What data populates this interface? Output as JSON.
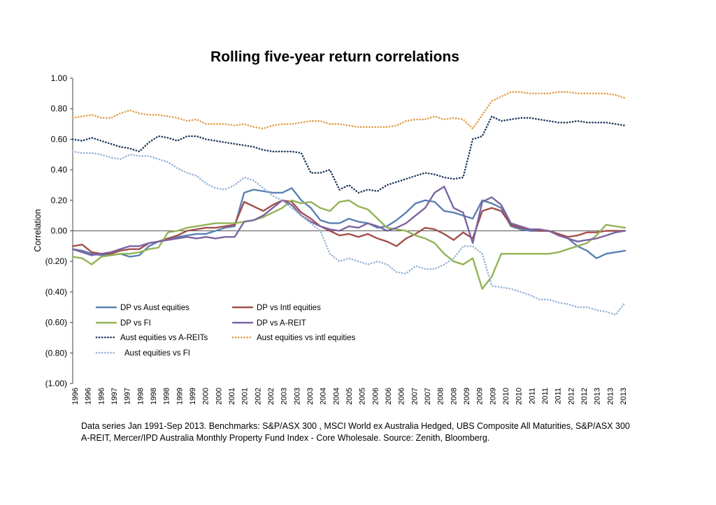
{
  "chart_data": {
    "type": "line",
    "title": "Rolling five-year return correlations",
    "ylabel": "Correlation",
    "xlabel": "",
    "ylim": [
      -1.0,
      1.0
    ],
    "y_ticks": [
      "1.00",
      "0.80",
      "0.60",
      "0.40",
      "0.20",
      "0.00",
      "(0.20)",
      "(0.40)",
      "(0.60)",
      "(0.80)",
      "(1.00)"
    ],
    "x_tick_labels": [
      "1996",
      "1996",
      "1996",
      "1997",
      "1997",
      "1998",
      "1998",
      "1998",
      "1999",
      "1999",
      "2000",
      "2000",
      "2001",
      "2001",
      "2002",
      "2002",
      "2003",
      "2003",
      "2003",
      "2004",
      "2004",
      "2005",
      "2005",
      "2006",
      "2006",
      "2006",
      "2007",
      "2007",
      "2008",
      "2008",
      "2009",
      "2009",
      "2009",
      "2010",
      "2010",
      "2011",
      "2011",
      "2011",
      "2012",
      "2012",
      "2013",
      "2013",
      "2013"
    ],
    "grid": false,
    "legend_position": "lower-left inside",
    "series": [
      {
        "name": "DP vs Aust equities",
        "color": "#5b80b2",
        "style": "solid",
        "values": [
          -0.12,
          -0.13,
          -0.15,
          -0.16,
          -0.16,
          -0.15,
          -0.17,
          -0.16,
          -0.1,
          -0.07,
          -0.05,
          -0.04,
          -0.03,
          -0.02,
          -0.02,
          0.0,
          0.02,
          0.03,
          0.25,
          0.27,
          0.26,
          0.25,
          0.25,
          0.28,
          0.2,
          0.15,
          0.07,
          0.05,
          0.05,
          0.08,
          0.06,
          0.05,
          0.02,
          0.03,
          0.07,
          0.12,
          0.18,
          0.2,
          0.19,
          0.13,
          0.12,
          0.1,
          0.08,
          0.2,
          0.18,
          0.15,
          0.03,
          0.01,
          0.0,
          0.0,
          0.0,
          -0.02,
          -0.05,
          -0.1,
          -0.13,
          -0.18,
          -0.15,
          -0.14,
          -0.13
        ]
      },
      {
        "name": "DP vs Intl equities",
        "color": "#a1504d",
        "style": "solid",
        "values": [
          -0.1,
          -0.09,
          -0.14,
          -0.15,
          -0.15,
          -0.13,
          -0.12,
          -0.12,
          -0.08,
          -0.07,
          -0.05,
          -0.03,
          0.0,
          0.01,
          0.02,
          0.02,
          0.03,
          0.04,
          0.19,
          0.16,
          0.13,
          0.17,
          0.2,
          0.19,
          0.12,
          0.08,
          0.03,
          0.0,
          -0.03,
          -0.02,
          -0.04,
          -0.02,
          -0.05,
          -0.07,
          -0.1,
          -0.05,
          -0.02,
          0.02,
          0.01,
          -0.02,
          -0.06,
          -0.01,
          -0.05,
          0.13,
          0.15,
          0.13,
          0.04,
          0.02,
          0.01,
          0.0,
          0.0,
          -0.02,
          -0.04,
          -0.03,
          -0.01,
          -0.01,
          0.0,
          0.0,
          0.0
        ]
      },
      {
        "name": "DP vs FI",
        "color": "#92b356",
        "style": "solid",
        "values": [
          -0.17,
          -0.18,
          -0.22,
          -0.17,
          -0.16,
          -0.15,
          -0.15,
          -0.14,
          -0.12,
          -0.11,
          -0.01,
          0.0,
          0.02,
          0.03,
          0.04,
          0.05,
          0.05,
          0.05,
          0.06,
          0.07,
          0.09,
          0.12,
          0.15,
          0.2,
          0.18,
          0.19,
          0.15,
          0.13,
          0.19,
          0.2,
          0.16,
          0.14,
          0.08,
          0.02,
          0.01,
          0.0,
          -0.03,
          -0.05,
          -0.08,
          -0.15,
          -0.2,
          -0.22,
          -0.18,
          -0.38,
          -0.3,
          -0.15,
          -0.15,
          -0.15,
          -0.15,
          -0.15,
          -0.15,
          -0.14,
          -0.12,
          -0.1,
          -0.08,
          -0.03,
          0.04,
          0.03,
          0.02
        ]
      },
      {
        "name": "DP vs A-REIT",
        "color": "#7b64a3",
        "style": "solid",
        "values": [
          -0.12,
          -0.14,
          -0.16,
          -0.15,
          -0.14,
          -0.12,
          -0.1,
          -0.1,
          -0.08,
          -0.07,
          -0.06,
          -0.05,
          -0.04,
          -0.05,
          -0.04,
          -0.05,
          -0.04,
          -0.04,
          0.06,
          0.07,
          0.1,
          0.15,
          0.2,
          0.17,
          0.1,
          0.06,
          0.03,
          0.01,
          0.0,
          0.03,
          0.02,
          0.05,
          0.03,
          0.0,
          0.02,
          0.05,
          0.1,
          0.15,
          0.25,
          0.29,
          0.15,
          0.12,
          -0.08,
          0.19,
          0.22,
          0.17,
          0.05,
          0.03,
          0.01,
          0.01,
          0.0,
          -0.03,
          -0.05,
          -0.07,
          -0.06,
          -0.05,
          -0.03,
          -0.01,
          0.0
        ]
      },
      {
        "name": "Aust equities vs A-REITs",
        "color": "#1f3a5f",
        "style": "dotted",
        "values": [
          0.6,
          0.59,
          0.61,
          0.59,
          0.57,
          0.55,
          0.54,
          0.52,
          0.58,
          0.62,
          0.61,
          0.59,
          0.62,
          0.62,
          0.6,
          0.59,
          0.58,
          0.57,
          0.56,
          0.55,
          0.53,
          0.52,
          0.52,
          0.52,
          0.51,
          0.38,
          0.38,
          0.4,
          0.27,
          0.3,
          0.25,
          0.27,
          0.26,
          0.3,
          0.32,
          0.34,
          0.36,
          0.38,
          0.37,
          0.35,
          0.34,
          0.35,
          0.6,
          0.62,
          0.75,
          0.72,
          0.73,
          0.74,
          0.74,
          0.73,
          0.72,
          0.71,
          0.71,
          0.72,
          0.71,
          0.71,
          0.71,
          0.7,
          0.69
        ]
      },
      {
        "name": "Aust equities vs intl equities",
        "color": "#e0a04b",
        "style": "dotted",
        "values": [
          0.74,
          0.75,
          0.76,
          0.74,
          0.74,
          0.77,
          0.79,
          0.77,
          0.76,
          0.76,
          0.75,
          0.74,
          0.72,
          0.73,
          0.7,
          0.7,
          0.7,
          0.69,
          0.7,
          0.68,
          0.67,
          0.69,
          0.7,
          0.7,
          0.71,
          0.72,
          0.72,
          0.7,
          0.7,
          0.69,
          0.68,
          0.68,
          0.68,
          0.68,
          0.69,
          0.72,
          0.73,
          0.73,
          0.75,
          0.73,
          0.74,
          0.73,
          0.67,
          0.76,
          0.85,
          0.88,
          0.91,
          0.91,
          0.9,
          0.9,
          0.9,
          0.91,
          0.91,
          0.9,
          0.9,
          0.9,
          0.9,
          0.89,
          0.87
        ]
      },
      {
        "name": "Aust equities vs FI",
        "color": "#97b5d8",
        "style": "dotted",
        "values": [
          0.52,
          0.51,
          0.51,
          0.5,
          0.48,
          0.47,
          0.5,
          0.49,
          0.49,
          0.47,
          0.45,
          0.41,
          0.38,
          0.36,
          0.31,
          0.28,
          0.27,
          0.3,
          0.35,
          0.33,
          0.28,
          0.23,
          0.2,
          0.15,
          0.1,
          0.05,
          0.0,
          -0.15,
          -0.2,
          -0.18,
          -0.2,
          -0.22,
          -0.2,
          -0.22,
          -0.27,
          -0.28,
          -0.23,
          -0.25,
          -0.25,
          -0.22,
          -0.18,
          -0.1,
          -0.1,
          -0.15,
          -0.36,
          -0.37,
          -0.38,
          -0.4,
          -0.42,
          -0.45,
          -0.45,
          -0.47,
          -0.48,
          -0.5,
          -0.5,
          -0.52,
          -0.53,
          -0.55,
          -0.47
        ]
      }
    ]
  },
  "source_note": "Data series Jan 1991-Sep 2013. Benchmarks: S&P/ASX 300 , MSCI World ex Australia Hedged, UBS Composite All Maturities, S&P/ASX 300 A-REIT, Mercer/IPD Australia Monthly Property Fund Index - Core Wholesale. Source: Zenith, Bloomberg."
}
